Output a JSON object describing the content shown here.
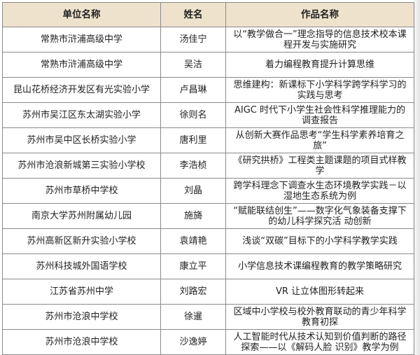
{
  "table": {
    "headers": [
      "单位名称",
      "姓名",
      "作品名称"
    ],
    "rows": [
      [
        "常熟市浒浦高级中学",
        "汤佳宁",
        "以“教学做合一”理念指导的信息技术校本课程开发与实施研究"
      ],
      [
        "常熟市浒浦高级中学",
        "吴洁",
        "着力编程教育提升计算思维"
      ],
      [
        "昆山花桥经济开发区有光实验小学",
        "卢昌琳",
        "思维建构：新课标下小学科学跨学科学习的实践与思考"
      ],
      [
        "苏州市吴江区东太湖实验小学",
        "徐则名",
        "AIGC 时代下小学生社会性科学推理能力的调查报告"
      ],
      [
        "苏州市吴中区长桥实验小学",
        "唐利里",
        "从创新大赛作品思考“学生科学素养培育之旅”"
      ],
      [
        "苏州市沧浪新城第三实验小学校",
        "李浩桢",
        "《研究拱桥》工程类主题课题的项目式样教学"
      ],
      [
        "苏州市草桥中学校",
        "刘晶",
        "跨学科理念下调查水生态环境教学实践－以湿地生态系统为例"
      ],
      [
        "南京大学苏州附属幼儿园",
        "施旖",
        "“赋能联结创生”——数字化气象装备支撑下的幼儿科学探究活 动创新"
      ],
      [
        "苏州高新区新升实验小学校",
        "袁靖艳",
        "浅谈“双碳”目标下的小学科学教学实践"
      ],
      [
        "苏州科技城外国语学校",
        "康立平",
        "小学信息技术课编程教育的教学策略研究"
      ],
      [
        "江苏省苏州中学",
        "刘路宏",
        "VR 让立体图形转起来"
      ],
      [
        "苏州市沧浪中学校",
        "徐暹",
        "区域中小学校与校外教育联动的青少年科学教育初探"
      ],
      [
        "苏州市沧浪中学校",
        "沙逸婷",
        "人工智能时代从技术认知到价值判断的路径探索——以《解码人脸 识别》教学为例"
      ]
    ]
  },
  "colors": {
    "header_bg": "#efe2cd",
    "border": "#8a8a8a"
  }
}
